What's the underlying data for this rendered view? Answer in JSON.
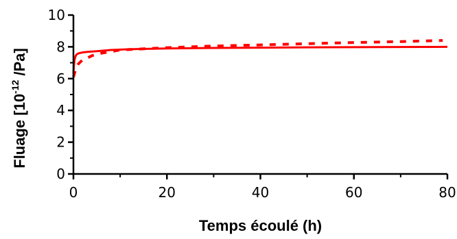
{
  "chart_data": {
    "type": "line",
    "xlabel": "Temps écoulé (h)",
    "ylabel": "Fluage [10-12 /Pa]",
    "ylabel_parts": {
      "main": "Fluage [10",
      "sup": "-12",
      "tail": " /Pa]"
    },
    "xlim": [
      0,
      80
    ],
    "ylim": [
      0,
      10
    ],
    "xticks": [
      0,
      20,
      40,
      60,
      80
    ],
    "yticks": [
      0,
      2,
      4,
      6,
      8,
      10
    ],
    "grid": false,
    "series_color": "#ff0000",
    "series": [
      {
        "style": "solid",
        "x": [
          0,
          0.1,
          0.25,
          0.5,
          0.8,
          1.2,
          2,
          3,
          5,
          8,
          12,
          20,
          30,
          40,
          50,
          60,
          70,
          80
        ],
        "y": [
          6.3,
          6.8,
          7.2,
          7.45,
          7.55,
          7.6,
          7.65,
          7.68,
          7.73,
          7.8,
          7.85,
          7.9,
          7.93,
          7.95,
          7.97,
          7.98,
          7.99,
          8.0
        ]
      },
      {
        "style": "dashed",
        "x": [
          0,
          0.2,
          0.5,
          1,
          2,
          3,
          4,
          6,
          10,
          20,
          30,
          40,
          50,
          60,
          70,
          79
        ],
        "y": [
          6.1,
          6.3,
          6.6,
          6.9,
          7.2,
          7.3,
          7.45,
          7.6,
          7.8,
          7.95,
          8.05,
          8.12,
          8.2,
          8.27,
          8.33,
          8.4
        ]
      }
    ]
  }
}
